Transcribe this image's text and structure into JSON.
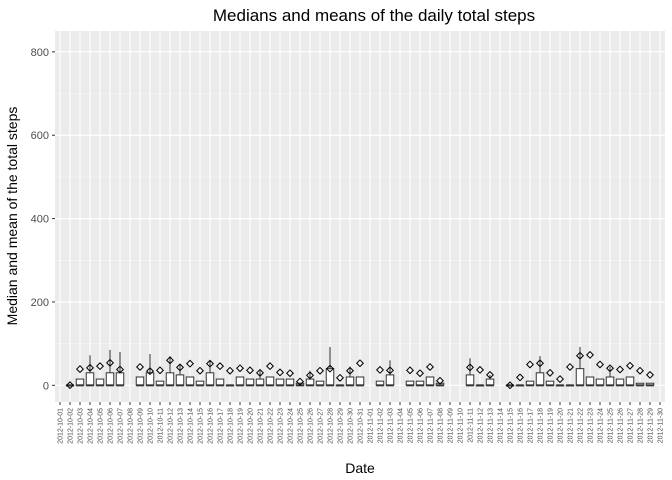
{
  "chart_data": {
    "type": "box",
    "title": "Medians and means of the daily total steps",
    "xlabel": "Date",
    "ylabel": "Median and mean of the total steps",
    "ylim": [
      -40,
      850
    ],
    "yticks": [
      0,
      200,
      400,
      600,
      800
    ],
    "grid": true,
    "legend": "none",
    "colors": {
      "panel": "#EBEBEB",
      "grid_major": "#FFFFFF",
      "grid_minor": "#F5F5F5",
      "box_fill": "#FFFFFF",
      "box_line": "#333333",
      "mean_marker": "#000000"
    },
    "categories": [
      "2012-10-01",
      "2012-10-02",
      "2012-10-03",
      "2012-10-04",
      "2012-10-05",
      "2012-10-06",
      "2012-10-07",
      "2012-10-08",
      "2012-10-09",
      "2012-10-10",
      "2012-10-11",
      "2012-10-12",
      "2012-10-13",
      "2012-10-14",
      "2012-10-15",
      "2012-10-16",
      "2012-10-17",
      "2012-10-18",
      "2012-10-19",
      "2012-10-20",
      "2012-10-21",
      "2012-10-22",
      "2012-10-23",
      "2012-10-24",
      "2012-10-25",
      "2012-10-26",
      "2012-10-27",
      "2012-10-28",
      "2012-10-29",
      "2012-10-30",
      "2012-10-31",
      "2012-11-01",
      "2012-11-02",
      "2012-11-03",
      "2012-11-04",
      "2012-11-05",
      "2012-11-06",
      "2012-11-07",
      "2012-11-08",
      "2012-11-09",
      "2012-11-10",
      "2012-11-11",
      "2012-11-12",
      "2012-11-13",
      "2012-11-14",
      "2012-11-15",
      "2012-11-16",
      "2012-11-17",
      "2012-11-18",
      "2012-11-19",
      "2012-11-20",
      "2012-11-21",
      "2012-11-22",
      "2012-11-23",
      "2012-11-24",
      "2012-11-25",
      "2012-11-26",
      "2012-11-27",
      "2012-11-28",
      "2012-11-29",
      "2012-11-30"
    ],
    "boxes": [
      null,
      {
        "q1": 0,
        "median": 0,
        "q3": 0,
        "whisker_high": 0,
        "mean": 0.4
      },
      {
        "q1": 0,
        "median": 0,
        "q3": 15,
        "whisker_high": 15,
        "mean": 39
      },
      {
        "q1": 0,
        "median": 0,
        "q3": 30,
        "whisker_high": 72,
        "mean": 42
      },
      {
        "q1": 0,
        "median": 0,
        "q3": 15,
        "whisker_high": 15,
        "mean": 46
      },
      {
        "q1": 0,
        "median": 0,
        "q3": 30,
        "whisker_high": 85,
        "mean": 54
      },
      {
        "q1": 0,
        "median": 0,
        "q3": 30,
        "whisker_high": 80,
        "mean": 38
      },
      null,
      {
        "q1": 0,
        "median": 0,
        "q3": 20,
        "whisker_high": 20,
        "mean": 44
      },
      {
        "q1": 0,
        "median": 0,
        "q3": 30,
        "whisker_high": 75,
        "mean": 34
      },
      {
        "q1": 0,
        "median": 0,
        "q3": 10,
        "whisker_high": 10,
        "mean": 36
      },
      {
        "q1": 0,
        "median": 0,
        "q3": 30,
        "whisker_high": 70,
        "mean": 60
      },
      {
        "q1": 0,
        "median": 0,
        "q3": 25,
        "whisker_high": 50,
        "mean": 43
      },
      {
        "q1": 0,
        "median": 0,
        "q3": 20,
        "whisker_high": 20,
        "mean": 52
      },
      {
        "q1": 0,
        "median": 0,
        "q3": 10,
        "whisker_high": 10,
        "mean": 35
      },
      {
        "q1": 0,
        "median": 0,
        "q3": 30,
        "whisker_high": 60,
        "mean": 52
      },
      {
        "q1": 0,
        "median": 0,
        "q3": 15,
        "whisker_high": 15,
        "mean": 46
      },
      {
        "q1": 0,
        "median": 0,
        "q3": 0,
        "whisker_high": 0,
        "mean": 35
      },
      {
        "q1": 0,
        "median": 0,
        "q3": 20,
        "whisker_high": 20,
        "mean": 41
      },
      {
        "q1": 0,
        "median": 0,
        "q3": 15,
        "whisker_high": 15,
        "mean": 36
      },
      {
        "q1": 0,
        "median": 0,
        "q3": 15,
        "whisker_high": 35,
        "mean": 30
      },
      {
        "q1": 0,
        "median": 0,
        "q3": 20,
        "whisker_high": 20,
        "mean": 46
      },
      {
        "q1": 0,
        "median": 0,
        "q3": 15,
        "whisker_high": 15,
        "mean": 31
      },
      {
        "q1": 0,
        "median": 0,
        "q3": 15,
        "whisker_high": 15,
        "mean": 29
      },
      {
        "q1": 0,
        "median": 0,
        "q3": 5,
        "whisker_high": 5,
        "mean": 9
      },
      {
        "q1": 0,
        "median": 0,
        "q3": 15,
        "whisker_high": 35,
        "mean": 24
      },
      {
        "q1": 0,
        "median": 0,
        "q3": 10,
        "whisker_high": 10,
        "mean": 35
      },
      {
        "q1": 0,
        "median": 0,
        "q3": 40,
        "whisker_high": 92,
        "mean": 40
      },
      {
        "q1": 0,
        "median": 0,
        "q3": 0,
        "whisker_high": 0,
        "mean": 18
      },
      {
        "q1": 0,
        "median": 0,
        "q3": 20,
        "whisker_high": 45,
        "mean": 35
      },
      {
        "q1": 0,
        "median": 0,
        "q3": 20,
        "whisker_high": 20,
        "mean": 53
      },
      null,
      {
        "q1": 0,
        "median": 0,
        "q3": 10,
        "whisker_high": 10,
        "mean": 37
      },
      {
        "q1": 0,
        "median": 0,
        "q3": 25,
        "whisker_high": 60,
        "mean": 36
      },
      null,
      {
        "q1": 0,
        "median": 0,
        "q3": 10,
        "whisker_high": 10,
        "mean": 36
      },
      {
        "q1": 0,
        "median": 0,
        "q3": 10,
        "whisker_high": 10,
        "mean": 29
      },
      {
        "q1": 0,
        "median": 0,
        "q3": 20,
        "whisker_high": 20,
        "mean": 44
      },
      {
        "q1": 0,
        "median": 0,
        "q3": 5,
        "whisker_high": 5,
        "mean": 11
      },
      null,
      null,
      {
        "q1": 0,
        "median": 0,
        "q3": 25,
        "whisker_high": 65,
        "mean": 43
      },
      {
        "q1": 0,
        "median": 0,
        "q3": 0,
        "whisker_high": 0,
        "mean": 37
      },
      {
        "q1": 0,
        "median": 0,
        "q3": 15,
        "whisker_high": 25,
        "mean": 25
      },
      null,
      {
        "q1": 0,
        "median": 0,
        "q3": 0,
        "whisker_high": 0,
        "mean": 0.1
      },
      {
        "q1": 0,
        "median": 0,
        "q3": 0,
        "whisker_high": 0,
        "mean": 19
      },
      {
        "q1": 0,
        "median": 0,
        "q3": 10,
        "whisker_high": 10,
        "mean": 50
      },
      {
        "q1": 0,
        "median": 0,
        "q3": 30,
        "whisker_high": 70,
        "mean": 53
      },
      {
        "q1": 0,
        "median": 0,
        "q3": 10,
        "whisker_high": 10,
        "mean": 30
      },
      {
        "q1": 0,
        "median": 0,
        "q3": 0,
        "whisker_high": 0,
        "mean": 15
      },
      {
        "q1": 0,
        "median": 0,
        "q3": 0,
        "whisker_high": 0,
        "mean": 44
      },
      {
        "q1": 0,
        "median": 0,
        "q3": 40,
        "whisker_high": 92,
        "mean": 71
      },
      {
        "q1": 0,
        "median": 0,
        "q3": 20,
        "whisker_high": 20,
        "mean": 73
      },
      {
        "q1": 0,
        "median": 0,
        "q3": 15,
        "whisker_high": 15,
        "mean": 50
      },
      {
        "q1": 0,
        "median": 0,
        "q3": 20,
        "whisker_high": 45,
        "mean": 41
      },
      {
        "q1": 0,
        "median": 0,
        "q3": 15,
        "whisker_high": 15,
        "mean": 38
      },
      {
        "q1": 0,
        "median": 0,
        "q3": 20,
        "whisker_high": 20,
        "mean": 47
      },
      {
        "q1": 0,
        "median": 0,
        "q3": 5,
        "whisker_high": 5,
        "mean": 35
      },
      {
        "q1": 0,
        "median": 0,
        "q3": 5,
        "whisker_high": 5,
        "mean": 25
      },
      null
    ]
  }
}
